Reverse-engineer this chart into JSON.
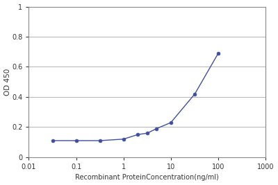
{
  "x": [
    0.032,
    0.1,
    0.32,
    1.0,
    2.0,
    3.2,
    5.0,
    10.0,
    32.0,
    100.0
  ],
  "y": [
    0.11,
    0.11,
    0.11,
    0.12,
    0.15,
    0.16,
    0.19,
    0.23,
    0.42,
    0.69
  ],
  "xlabel": "Recombinant ProteinConcentration(ng/ml)",
  "ylabel": "OD 450",
  "xlim": [
    0.01,
    1000
  ],
  "ylim": [
    0,
    1.0
  ],
  "yticks": [
    0,
    0.2,
    0.4,
    0.6,
    0.8,
    1
  ],
  "xticks": [
    0.01,
    0.1,
    1,
    10,
    100,
    1000
  ],
  "xtick_labels": [
    "0.01",
    "0.1",
    "1",
    "10",
    "100",
    "1000"
  ],
  "line_color": "#3F4FA0",
  "marker_color": "#3F4FA0",
  "bg_color": "#ffffff",
  "grid_color": "#aaaaaa",
  "spine_color": "#888888"
}
